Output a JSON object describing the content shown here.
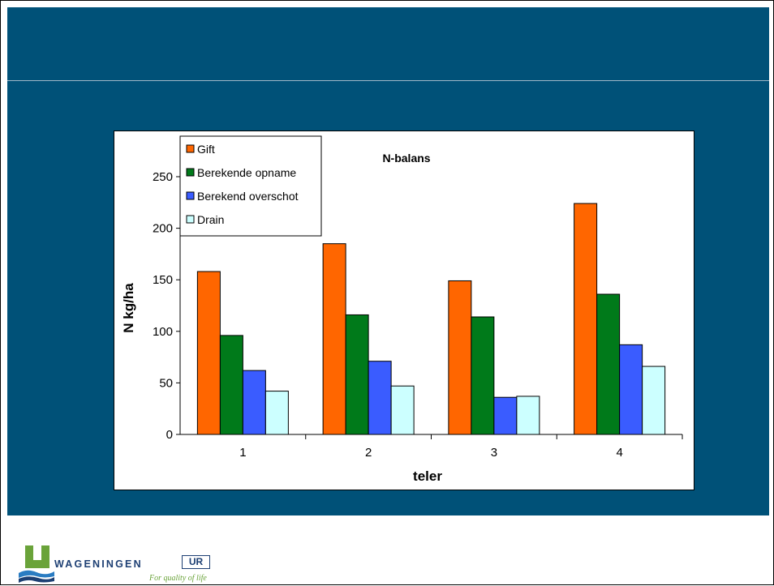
{
  "chart_data": {
    "type": "bar",
    "title": "N-balans",
    "xlabel": "teler",
    "ylabel": "N  kg/ha",
    "categories": [
      "1",
      "2",
      "3",
      "4"
    ],
    "ylim": [
      0,
      250
    ],
    "yticks": [
      "0",
      "50",
      "100",
      "150",
      "200",
      "250"
    ],
    "legend_position": "top-left",
    "grid": false,
    "series": [
      {
        "name": "Gift",
        "color": "#ff6600",
        "values": [
          158,
          185,
          149,
          224
        ]
      },
      {
        "name": "Berekende opname",
        "color": "#007a1a",
        "values": [
          96,
          116,
          114,
          136
        ]
      },
      {
        "name": "Berekend overschot",
        "color": "#3a5cff",
        "values": [
          62,
          71,
          36,
          87
        ]
      },
      {
        "name": "Drain",
        "color": "#ccffff",
        "values": [
          42,
          47,
          37,
          66
        ]
      }
    ]
  },
  "logo": {
    "word": "WAGENINGEN",
    "ur": "UR",
    "tagline": "For quality of life",
    "colors": {
      "navy": "#1d3f73",
      "green": "#6aa33a",
      "blue": "#2a7cc2"
    }
  },
  "colors": {
    "slide_band": "#005178",
    "chart_bg": "#ffffff"
  }
}
